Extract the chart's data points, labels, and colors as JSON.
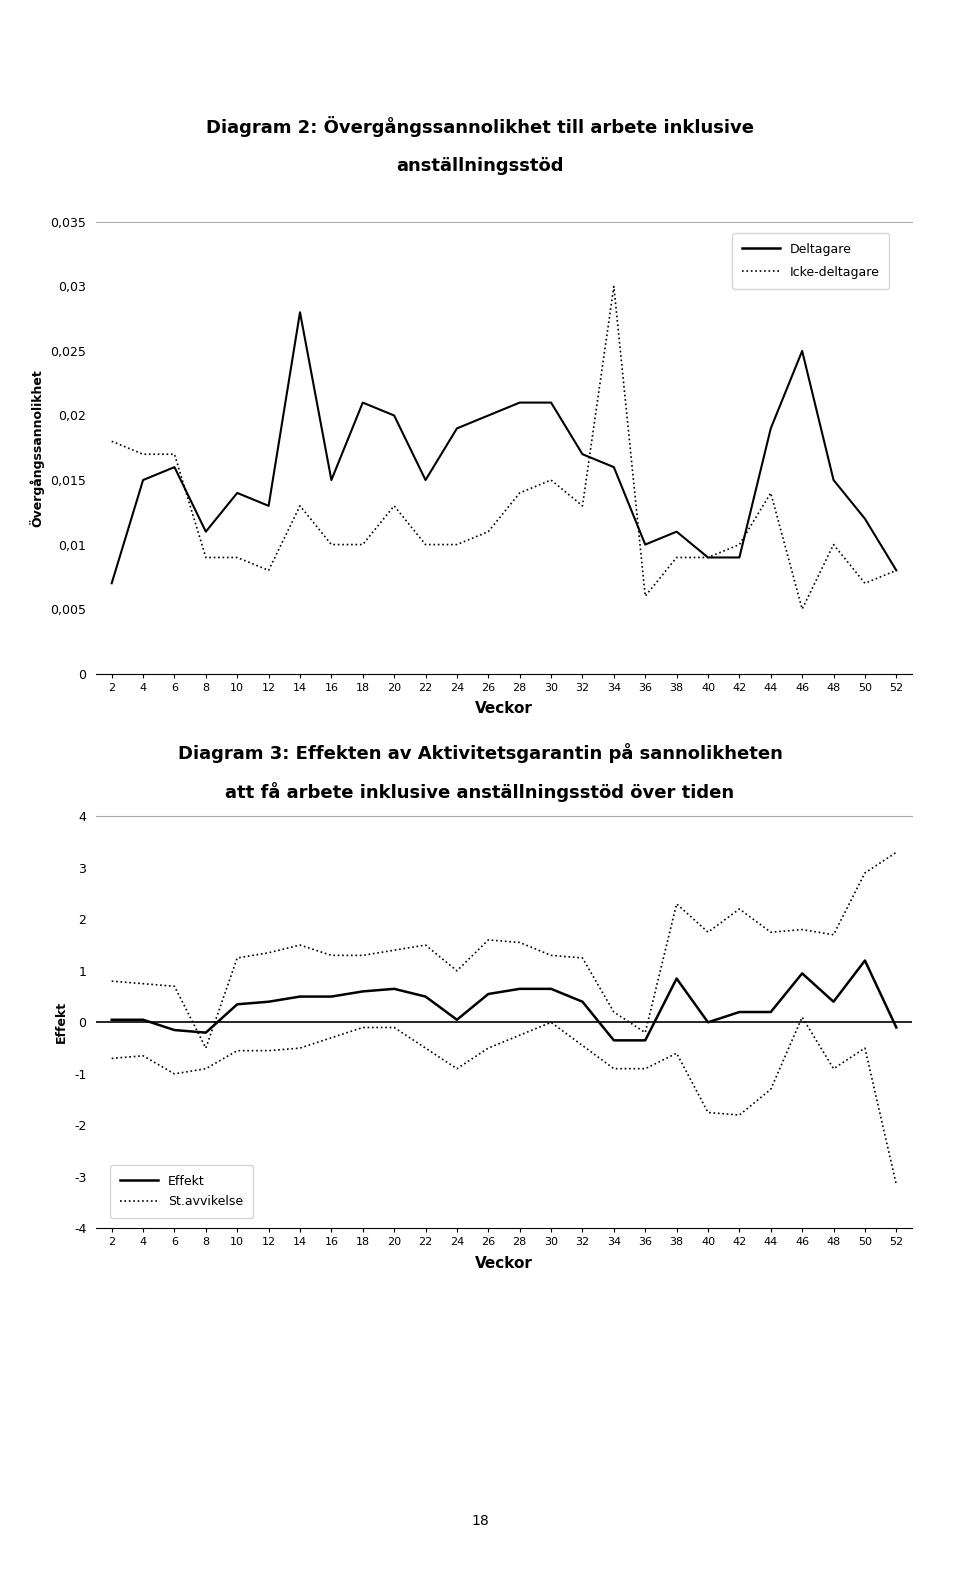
{
  "title1_line1": "Diagram 2: Övergångssannolikhet till arbete inklusive",
  "title1_line2": "anställningsstöd",
  "title2_line1": "Diagram 3: Effekten av Aktivitetsgarantin på sannolikheten",
  "title2_line2": "att få arbete inklusive anställningsstöd över tiden",
  "xlabel": "Veckor",
  "ylabel1": "Övergångssannolikhet",
  "ylabel2": "Effekt",
  "x": [
    2,
    4,
    6,
    8,
    10,
    12,
    14,
    16,
    18,
    20,
    22,
    24,
    26,
    28,
    30,
    32,
    34,
    36,
    38,
    40,
    42,
    44,
    46,
    48,
    50,
    52
  ],
  "deltagare": [
    0.007,
    0.015,
    0.016,
    0.011,
    0.014,
    0.013,
    0.028,
    0.015,
    0.021,
    0.02,
    0.015,
    0.019,
    0.02,
    0.021,
    0.021,
    0.017,
    0.016,
    0.01,
    0.011,
    0.009,
    0.009,
    0.019,
    0.025,
    0.015,
    0.012,
    0.008
  ],
  "icke_deltagare": [
    0.018,
    0.017,
    0.017,
    0.009,
    0.009,
    0.008,
    0.013,
    0.01,
    0.01,
    0.013,
    0.01,
    0.01,
    0.011,
    0.014,
    0.015,
    0.013,
    0.03,
    0.006,
    0.009,
    0.009,
    0.01,
    0.014,
    0.005,
    0.01,
    0.007,
    0.008
  ],
  "effekt": [
    0.05,
    0.05,
    -0.15,
    -0.2,
    0.35,
    0.4,
    0.5,
    0.5,
    0.6,
    0.65,
    0.5,
    0.05,
    0.55,
    0.65,
    0.65,
    0.4,
    -0.35,
    -0.35,
    0.85,
    0.0,
    0.2,
    0.2,
    0.95,
    0.4,
    1.2,
    -0.1
  ],
  "st_avvikelse_upper": [
    0.8,
    0.75,
    0.7,
    -0.5,
    1.25,
    1.35,
    1.5,
    1.3,
    1.3,
    1.4,
    1.5,
    1.0,
    1.6,
    1.55,
    1.3,
    1.25,
    0.2,
    -0.2,
    2.3,
    1.75,
    2.2,
    1.75,
    1.8,
    1.7,
    2.9,
    3.3
  ],
  "st_avvikelse_lower": [
    -0.7,
    -0.65,
    -1.0,
    -0.9,
    -0.55,
    -0.55,
    -0.5,
    -0.3,
    -0.1,
    -0.1,
    -0.5,
    -0.9,
    -0.5,
    -0.25,
    0.0,
    -0.45,
    -0.9,
    -0.9,
    -0.6,
    -1.75,
    -1.8,
    -1.3,
    0.1,
    -0.9,
    -0.5,
    -3.15
  ],
  "background_color": "#ffffff",
  "page_number": "18"
}
